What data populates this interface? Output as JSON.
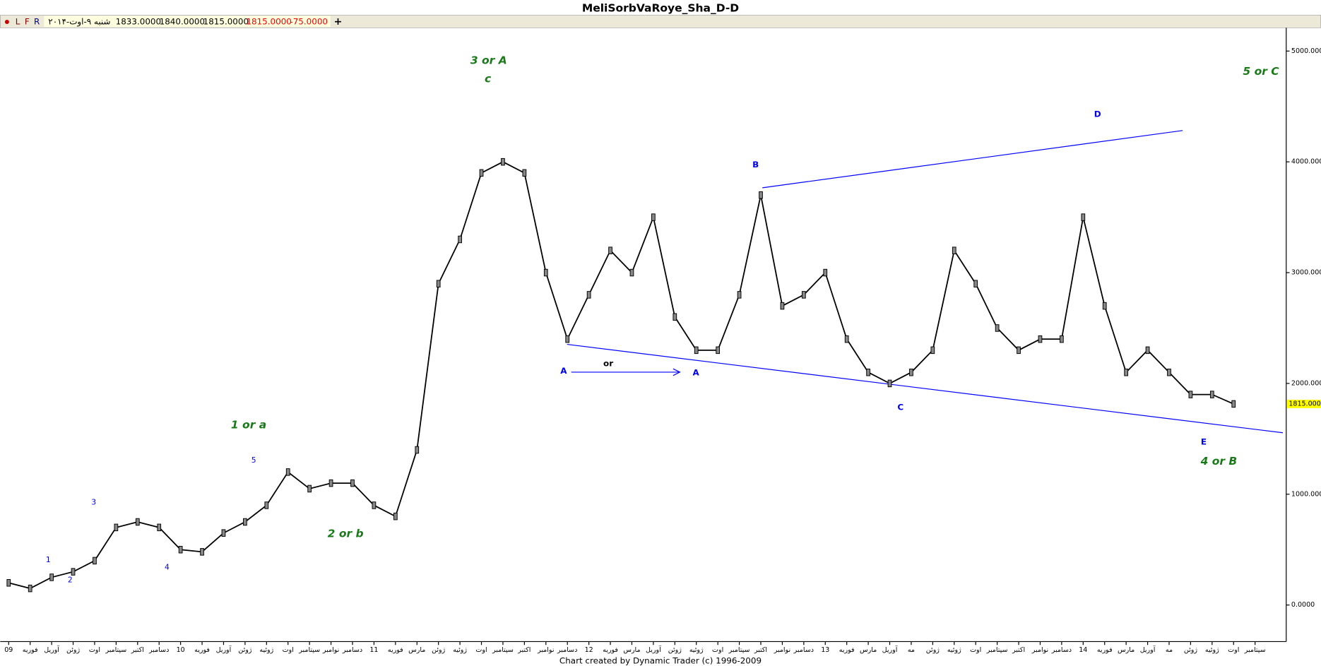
{
  "chart_data": {
    "type": "line",
    "title": "MeliSorbVaRoye_Sha_D-D",
    "toolbar": {
      "buttons": [
        "L",
        "F",
        "R"
      ],
      "date": "شنبه ۹-اوت-۲۰۱۴",
      "open": "1833.0000",
      "high": "1840.0000",
      "low": "1815.0000",
      "close": "1815.0000",
      "change": "-75.0000"
    },
    "last_price_label": "1815.0000",
    "footer": "Chart created by Dynamic Trader  (c) 1996-2009",
    "categories": [
      "09",
      "فوریه",
      "آوریل",
      "ژوئن",
      "اوت",
      "سپتامبر",
      "اکتبر",
      "دسامبر",
      "10",
      "فوریه",
      "آوریل",
      "ژوئن",
      "ژوئیه",
      "اوت",
      "سپتامبر",
      "نوامبر",
      "دسامبر",
      "11",
      "فوریه",
      "مارس",
      "ژوئن",
      "ژوئیه",
      "اوت",
      "سپتامبر",
      "اکتبر",
      "نوامبر",
      "دسامبر",
      "12",
      "فوریه",
      "مارس",
      "آوریل",
      "ژوئن",
      "ژوئیه",
      "اوت",
      "سپتامبر",
      "اکتبر",
      "نوامبر",
      "دسامبر",
      "13",
      "فوریه",
      "مارس",
      "آوریل",
      "مه",
      "ژوئن",
      "ژوئیه",
      "اوت",
      "سپتامبر",
      "اکتبر",
      "نوامبر",
      "دسامبر",
      "14",
      "فوریه",
      "مارس",
      "آوریل",
      "مه",
      "ژوئن",
      "ژوئیه",
      "اوت",
      "سپتامبر"
    ],
    "series": [
      {
        "name": "MeliSorbVaRoye_Sha",
        "color": "#000000",
        "values": [
          200,
          150,
          250,
          300,
          400,
          700,
          750,
          700,
          500,
          480,
          650,
          750,
          900,
          1200,
          1050,
          1100,
          1100,
          900,
          800,
          1400,
          2900,
          3300,
          3900,
          4000,
          3900,
          3000,
          2400,
          2800,
          3200,
          3000,
          3500,
          2600,
          2300,
          2300,
          2800,
          3700,
          2700,
          2800,
          3000,
          2400,
          2100,
          2000,
          2100,
          2300,
          3200,
          2900,
          2500,
          2300,
          2400,
          2400,
          3500,
          2700,
          2100,
          2300,
          2100,
          1900,
          1900,
          1815,
          null
        ]
      }
    ],
    "ylim": [
      -330,
      5210
    ],
    "yticks": [
      {
        "value": 0,
        "label": "0.0000"
      },
      {
        "value": 1000,
        "label": "1000.0000"
      },
      {
        "value": 2000,
        "label": "2000.0000"
      },
      {
        "value": 3000,
        "label": "3000.0000"
      },
      {
        "value": 4000,
        "label": "4000.0000"
      },
      {
        "value": 5000,
        "label": "5000.0000"
      }
    ],
    "annotations": [
      "3 or A",
      "c",
      "1 or a",
      "2 or b",
      "4 or B",
      "5 or C",
      "1",
      "2",
      "3",
      "4",
      "5",
      "A",
      "or",
      "A",
      "B",
      "C",
      "D",
      "E"
    ]
  }
}
